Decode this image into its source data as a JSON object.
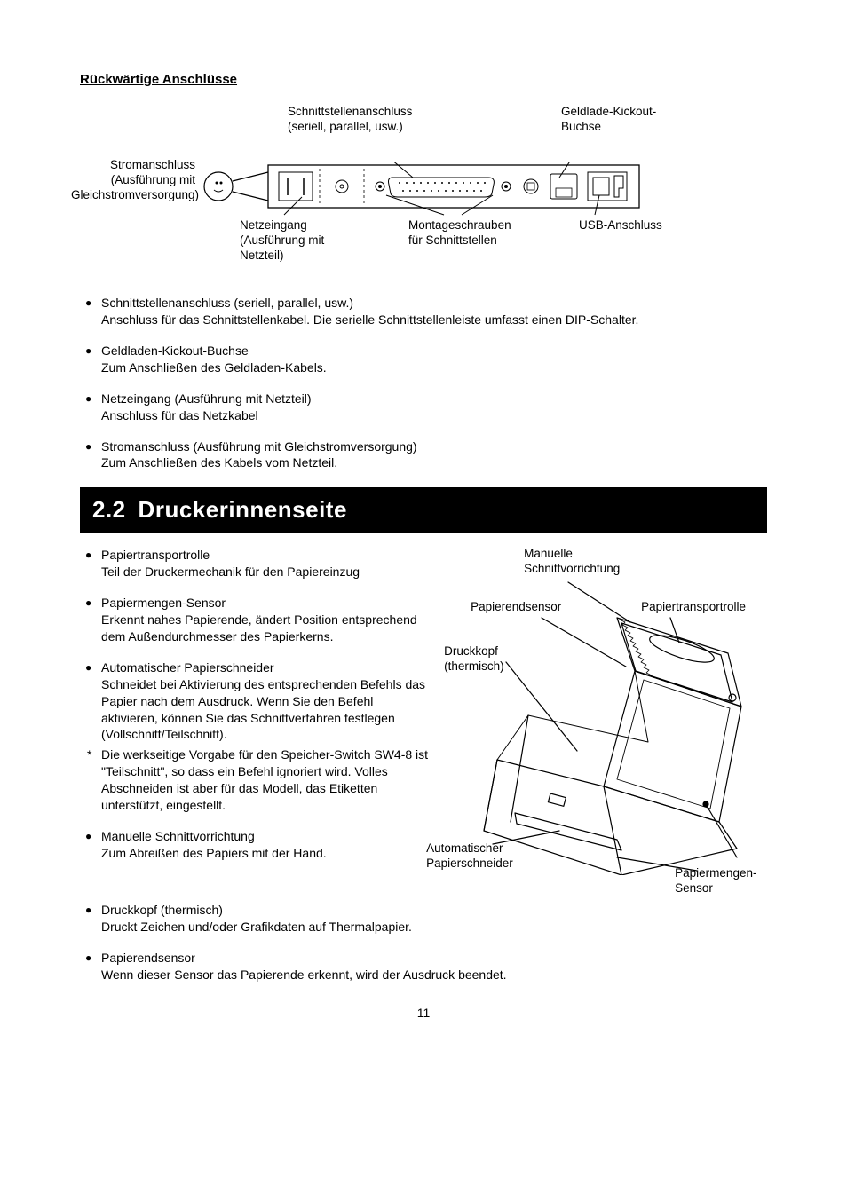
{
  "page": {
    "number": "— 11 —"
  },
  "colors": {
    "text": "#000000",
    "background": "#ffffff",
    "header_bg": "#000000",
    "header_fg": "#ffffff",
    "line": "#000000"
  },
  "typography": {
    "body_fontsize": 14,
    "label_fontsize": 13.5,
    "header_fontsize": 26,
    "title_fontsize": 15,
    "font_family": "Arial, Helvetica, sans-serif"
  },
  "rear": {
    "title": "Rückwärtige Anschlüsse",
    "labels": {
      "interface_top": "Schnittstellenanschluss\n(seriell, parallel, usw.)",
      "kickout": "Geldlade-Kickout-\nBuchse",
      "power_dc": "Stromanschluss\n(Ausführung mit\nGleichstromversorgung)",
      "ac_inlet": "Netzeingang\n(Ausführung mit\nNetzteil)",
      "screws": "Montageschrauben\nfür Schnittstellen",
      "usb": "USB-Anschluss"
    },
    "bullets": [
      {
        "title": "Schnittstellenanschluss (seriell, parallel, usw.)",
        "desc": "Anschluss für das Schnittstellenkabel. Die serielle Schnittstellenleiste umfasst einen DIP-Schalter."
      },
      {
        "title": "Geldladen-Kickout-Buchse",
        "desc": "Zum Anschließen des Geldladen-Kabels."
      },
      {
        "title": "Netzeingang (Ausführung mit Netzteil)",
        "desc": "Anschluss für das Netzkabel"
      },
      {
        "title": "Stromanschluss (Ausführung mit Gleichstromversorgung)",
        "desc": "Zum Anschließen des Kabels vom Netzteil."
      }
    ]
  },
  "section22": {
    "number": "2.2",
    "name": "Druckerinnenseite",
    "left_bullets": [
      {
        "title": "Papiertransportrolle",
        "desc": "Teil der Druckermechanik für den Papiereinzug"
      },
      {
        "title": "Papiermengen-Sensor",
        "desc": "Erkennt nahes Papierende, ändert Position entsprechend dem Außendurchmesser des Papierkerns."
      },
      {
        "title": "Automatischer Papierschneider",
        "desc": "Schneidet bei Aktivierung des entsprechenden Befehls das Papier nach dem Ausdruck. Wenn Sie den Befehl aktivieren, können Sie das Schnittverfahren festlegen (Vollschnitt/Teilschnitt)."
      }
    ],
    "asterisk": "Die werkseitige Vorgabe für den Speicher-Switch SW4-8 ist \"Teilschnitt\", so dass ein Befehl ignoriert wird. Volles Abschneiden ist aber für das Modell, das Etiketten unterstützt, eingestellt.",
    "left_bullets2": [
      {
        "title": "Manuelle Schnittvorrichtung",
        "desc": "Zum Abreißen des Papiers mit der Hand."
      }
    ],
    "bottom_bullets": [
      {
        "title": "Druckkopf (thermisch)",
        "desc": "Druckt Zeichen und/oder Grafikdaten auf Thermalpapier."
      },
      {
        "title": "Papierendsensor",
        "desc": "Wenn dieser Sensor das Papierende erkennt, wird der Ausdruck beendet."
      }
    ],
    "diagram_labels": {
      "manual_cutter": "Manuelle\nSchnittvorrichtung",
      "paper_end_sensor": "Papierendsensor",
      "platen": "Papiertransportrolle",
      "print_head": "Druckkopf\n(thermisch)",
      "auto_cutter": "Automatischer\nPapierschneider",
      "pne_sensor": "Papiermengen-\nSensor"
    }
  }
}
